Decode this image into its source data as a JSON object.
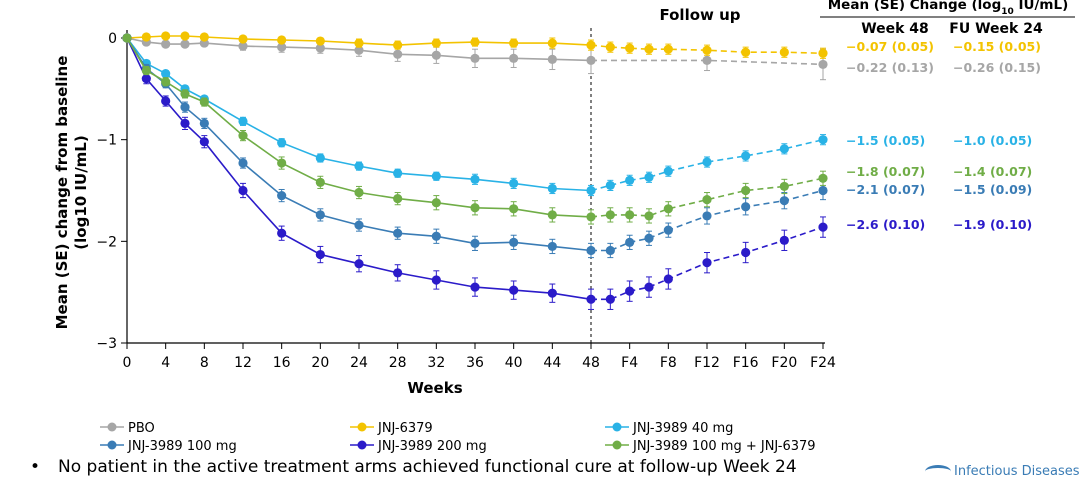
{
  "chart_data": {
    "type": "line",
    "xlabel": "Weeks",
    "ylabel_main": "Mean (SE) change from baseline",
    "ylabel_unit": "(log10 IU/mL)",
    "ylim": [
      -3,
      0
    ],
    "yticks": [
      0,
      -1,
      -2,
      -3
    ],
    "ytick_labels": [
      "0",
      "−1",
      "−2",
      "−3"
    ],
    "x_positions": [
      0,
      2,
      4,
      6,
      8,
      12,
      16,
      20,
      24,
      28,
      32,
      36,
      40,
      44,
      48,
      50,
      52,
      54,
      56,
      60,
      64,
      68,
      72
    ],
    "x_ticks": [
      0,
      4,
      8,
      12,
      16,
      20,
      24,
      28,
      32,
      36,
      40,
      44,
      48,
      52,
      56,
      60,
      64,
      68,
      72
    ],
    "x_tick_labels": [
      "0",
      "4",
      "8",
      "12",
      "16",
      "20",
      "24",
      "28",
      "32",
      "36",
      "40",
      "44",
      "48",
      "F4",
      "F8",
      "F12",
      "F16",
      "F20",
      "F24"
    ],
    "follow_up_label": "Follow up",
    "follow_up_start": 48,
    "table_header": "Mean (SE) Change (log",
    "table_header_sub": "10",
    "table_header_end": " IU/mL)",
    "col_week48": "Week 48",
    "col_fu24": "FU Week 24",
    "series": [
      {
        "name": "PBO",
        "color": "#a6a6a6",
        "y": [
          0,
          -0.04,
          -0.06,
          -0.06,
          -0.05,
          -0.08,
          -0.09,
          -0.1,
          -0.12,
          -0.16,
          -0.17,
          -0.2,
          -0.2,
          -0.21,
          -0.22,
          null,
          null,
          null,
          null,
          -0.22,
          null,
          null,
          -0.26
        ],
        "se": [
          0,
          0.03,
          0.03,
          0.03,
          0.03,
          0.04,
          0.05,
          0.05,
          0.06,
          0.07,
          0.08,
          0.09,
          0.09,
          0.1,
          0.13,
          0,
          0,
          0,
          0,
          0.1,
          0,
          0,
          0.15
        ],
        "week48": "−0.22 (0.13)",
        "fu24": "−0.26 (0.15)"
      },
      {
        "name": "JNJ-6379",
        "color": "#f3c300",
        "y": [
          0,
          0.01,
          0.02,
          0.02,
          0.01,
          -0.01,
          -0.02,
          -0.03,
          -0.05,
          -0.07,
          -0.05,
          -0.04,
          -0.05,
          -0.05,
          -0.07,
          -0.09,
          -0.1,
          -0.11,
          -0.11,
          -0.12,
          -0.14,
          -0.14,
          -0.15
        ],
        "se": [
          0,
          0.02,
          0.02,
          0.02,
          0.02,
          0.03,
          0.03,
          0.03,
          0.04,
          0.04,
          0.04,
          0.04,
          0.04,
          0.05,
          0.05,
          0.05,
          0.05,
          0.05,
          0.05,
          0.05,
          0.05,
          0.05,
          0.05
        ],
        "week48": "−0.07 (0.05)",
        "fu24": "−0.15 (0.05)"
      },
      {
        "name": "JNJ-3989 40 mg",
        "color": "#29b2e6",
        "y": [
          0,
          -0.25,
          -0.35,
          -0.5,
          -0.6,
          -0.82,
          -1.03,
          -1.18,
          -1.26,
          -1.33,
          -1.36,
          -1.39,
          -1.43,
          -1.48,
          -1.5,
          -1.45,
          -1.4,
          -1.37,
          -1.31,
          -1.22,
          -1.16,
          -1.09,
          -1.0
        ],
        "se": [
          0,
          0.03,
          0.03,
          0.03,
          0.03,
          0.04,
          0.04,
          0.04,
          0.04,
          0.04,
          0.04,
          0.05,
          0.05,
          0.05,
          0.05,
          0.05,
          0.05,
          0.05,
          0.05,
          0.05,
          0.05,
          0.05,
          0.05
        ],
        "week48": "−1.5 (0.05)",
        "fu24": "−1.0 (0.05)"
      },
      {
        "name": "JNJ-3989 100 mg",
        "color": "#3a7cb5",
        "y": [
          0,
          -0.3,
          -0.45,
          -0.68,
          -0.84,
          -1.23,
          -1.55,
          -1.74,
          -1.84,
          -1.92,
          -1.95,
          -2.02,
          -2.01,
          -2.05,
          -2.09,
          -2.09,
          -2.01,
          -1.97,
          -1.89,
          -1.75,
          -1.66,
          -1.6,
          -1.5
        ],
        "se": [
          0,
          0.04,
          0.04,
          0.05,
          0.05,
          0.05,
          0.06,
          0.06,
          0.06,
          0.06,
          0.07,
          0.07,
          0.07,
          0.07,
          0.07,
          0.07,
          0.07,
          0.07,
          0.07,
          0.08,
          0.08,
          0.08,
          0.09
        ],
        "week48": "−2.1 (0.07)",
        "fu24": "−1.5 (0.09)"
      },
      {
        "name": "JNJ-3989 200 mg",
        "color": "#2b1bc9",
        "y": [
          0,
          -0.4,
          -0.62,
          -0.84,
          -1.02,
          -1.5,
          -1.92,
          -2.13,
          -2.22,
          -2.31,
          -2.38,
          -2.45,
          -2.48,
          -2.51,
          -2.57,
          -2.57,
          -2.49,
          -2.45,
          -2.37,
          -2.21,
          -2.11,
          -1.99,
          -1.86
        ],
        "se": [
          0,
          0.05,
          0.05,
          0.06,
          0.06,
          0.07,
          0.07,
          0.08,
          0.08,
          0.08,
          0.09,
          0.09,
          0.09,
          0.09,
          0.1,
          0.1,
          0.1,
          0.1,
          0.1,
          0.1,
          0.1,
          0.1,
          0.1
        ],
        "week48": "−2.6 (0.10)",
        "fu24": "−1.9 (0.10)"
      },
      {
        "name": "JNJ-3989 100 mg + JNJ-6379",
        "color": "#70ad47",
        "y": [
          0,
          -0.32,
          -0.43,
          -0.55,
          -0.63,
          -0.96,
          -1.23,
          -1.42,
          -1.52,
          -1.58,
          -1.62,
          -1.67,
          -1.68,
          -1.74,
          -1.76,
          -1.74,
          -1.74,
          -1.75,
          -1.68,
          -1.59,
          -1.5,
          -1.46,
          -1.38
        ],
        "se": [
          0,
          0.04,
          0.04,
          0.04,
          0.04,
          0.05,
          0.06,
          0.06,
          0.06,
          0.06,
          0.07,
          0.07,
          0.07,
          0.07,
          0.07,
          0.07,
          0.07,
          0.07,
          0.07,
          0.07,
          0.07,
          0.07,
          0.07
        ],
        "week48": "−1.8 (0.07)",
        "fu24": "−1.4 (0.07)"
      }
    ]
  },
  "bullet_text": "No patient in the active treatment arms achieved functional cure at follow-up Week 24",
  "footer_logo_text": "Infectious Diseases"
}
